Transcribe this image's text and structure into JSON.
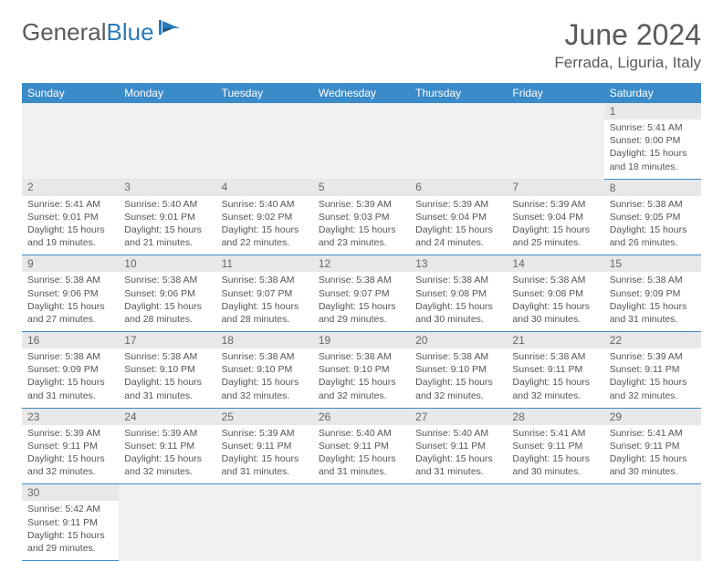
{
  "logo": {
    "text1": "General",
    "text2": "Blue"
  },
  "title": "June 2024",
  "location": "Ferrada, Liguria, Italy",
  "colors": {
    "header_bg": "#3b8bc9",
    "header_text": "#ffffff",
    "date_bg": "#e8e8e8",
    "empty_bg": "#f0f0f0",
    "border": "#3b8bc9",
    "text": "#555555",
    "title_text": "#5a5a5a"
  },
  "day_headers": [
    "Sunday",
    "Monday",
    "Tuesday",
    "Wednesday",
    "Thursday",
    "Friday",
    "Saturday"
  ],
  "weeks": [
    [
      null,
      null,
      null,
      null,
      null,
      null,
      {
        "d": "1",
        "sr": "5:41 AM",
        "ss": "9:00 PM",
        "dl": "15 hours and 18 minutes."
      }
    ],
    [
      {
        "d": "2",
        "sr": "5:41 AM",
        "ss": "9:01 PM",
        "dl": "15 hours and 19 minutes."
      },
      {
        "d": "3",
        "sr": "5:40 AM",
        "ss": "9:01 PM",
        "dl": "15 hours and 21 minutes."
      },
      {
        "d": "4",
        "sr": "5:40 AM",
        "ss": "9:02 PM",
        "dl": "15 hours and 22 minutes."
      },
      {
        "d": "5",
        "sr": "5:39 AM",
        "ss": "9:03 PM",
        "dl": "15 hours and 23 minutes."
      },
      {
        "d": "6",
        "sr": "5:39 AM",
        "ss": "9:04 PM",
        "dl": "15 hours and 24 minutes."
      },
      {
        "d": "7",
        "sr": "5:39 AM",
        "ss": "9:04 PM",
        "dl": "15 hours and 25 minutes."
      },
      {
        "d": "8",
        "sr": "5:38 AM",
        "ss": "9:05 PM",
        "dl": "15 hours and 26 minutes."
      }
    ],
    [
      {
        "d": "9",
        "sr": "5:38 AM",
        "ss": "9:06 PM",
        "dl": "15 hours and 27 minutes."
      },
      {
        "d": "10",
        "sr": "5:38 AM",
        "ss": "9:06 PM",
        "dl": "15 hours and 28 minutes."
      },
      {
        "d": "11",
        "sr": "5:38 AM",
        "ss": "9:07 PM",
        "dl": "15 hours and 28 minutes."
      },
      {
        "d": "12",
        "sr": "5:38 AM",
        "ss": "9:07 PM",
        "dl": "15 hours and 29 minutes."
      },
      {
        "d": "13",
        "sr": "5:38 AM",
        "ss": "9:08 PM",
        "dl": "15 hours and 30 minutes."
      },
      {
        "d": "14",
        "sr": "5:38 AM",
        "ss": "9:08 PM",
        "dl": "15 hours and 30 minutes."
      },
      {
        "d": "15",
        "sr": "5:38 AM",
        "ss": "9:09 PM",
        "dl": "15 hours and 31 minutes."
      }
    ],
    [
      {
        "d": "16",
        "sr": "5:38 AM",
        "ss": "9:09 PM",
        "dl": "15 hours and 31 minutes."
      },
      {
        "d": "17",
        "sr": "5:38 AM",
        "ss": "9:10 PM",
        "dl": "15 hours and 31 minutes."
      },
      {
        "d": "18",
        "sr": "5:38 AM",
        "ss": "9:10 PM",
        "dl": "15 hours and 32 minutes."
      },
      {
        "d": "19",
        "sr": "5:38 AM",
        "ss": "9:10 PM",
        "dl": "15 hours and 32 minutes."
      },
      {
        "d": "20",
        "sr": "5:38 AM",
        "ss": "9:10 PM",
        "dl": "15 hours and 32 minutes."
      },
      {
        "d": "21",
        "sr": "5:38 AM",
        "ss": "9:11 PM",
        "dl": "15 hours and 32 minutes."
      },
      {
        "d": "22",
        "sr": "5:39 AM",
        "ss": "9:11 PM",
        "dl": "15 hours and 32 minutes."
      }
    ],
    [
      {
        "d": "23",
        "sr": "5:39 AM",
        "ss": "9:11 PM",
        "dl": "15 hours and 32 minutes."
      },
      {
        "d": "24",
        "sr": "5:39 AM",
        "ss": "9:11 PM",
        "dl": "15 hours and 32 minutes."
      },
      {
        "d": "25",
        "sr": "5:39 AM",
        "ss": "9:11 PM",
        "dl": "15 hours and 31 minutes."
      },
      {
        "d": "26",
        "sr": "5:40 AM",
        "ss": "9:11 PM",
        "dl": "15 hours and 31 minutes."
      },
      {
        "d": "27",
        "sr": "5:40 AM",
        "ss": "9:11 PM",
        "dl": "15 hours and 31 minutes."
      },
      {
        "d": "28",
        "sr": "5:41 AM",
        "ss": "9:11 PM",
        "dl": "15 hours and 30 minutes."
      },
      {
        "d": "29",
        "sr": "5:41 AM",
        "ss": "9:11 PM",
        "dl": "15 hours and 30 minutes."
      }
    ],
    [
      {
        "d": "30",
        "sr": "5:42 AM",
        "ss": "9:11 PM",
        "dl": "15 hours and 29 minutes."
      },
      null,
      null,
      null,
      null,
      null,
      null
    ]
  ],
  "labels": {
    "sunrise": "Sunrise:",
    "sunset": "Sunset:",
    "daylight": "Daylight:"
  }
}
